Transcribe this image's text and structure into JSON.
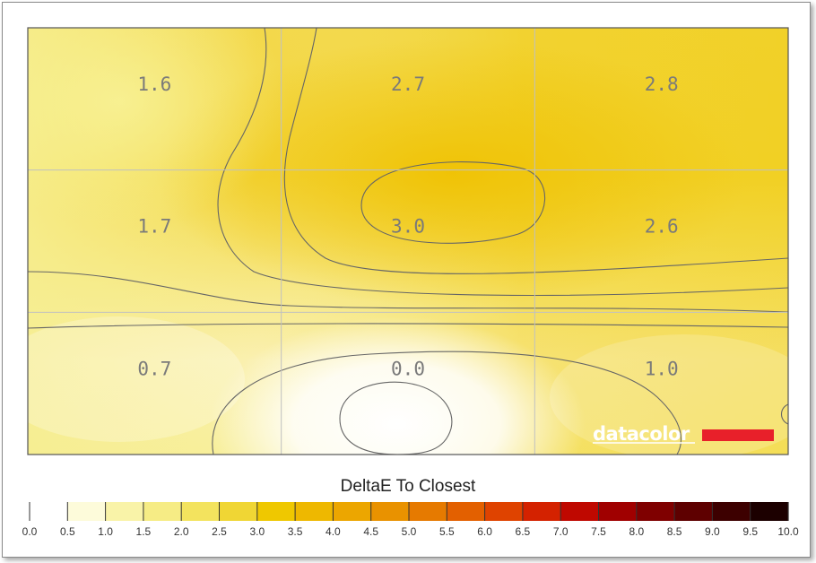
{
  "chart_data": {
    "type": "heatmap",
    "title": "DeltaE To Closest",
    "grid": {
      "rows": 3,
      "cols": 3,
      "shown": true
    },
    "values": [
      [
        1.6,
        2.7,
        2.8
      ],
      [
        1.7,
        3.0,
        2.6
      ],
      [
        0.7,
        0.0,
        1.0
      ]
    ],
    "value_labels": [
      [
        "1.6",
        "2.7",
        "2.8"
      ],
      [
        "1.7",
        "3.0",
        "2.6"
      ],
      [
        "0.7",
        "0.0",
        "1.0"
      ]
    ],
    "contours": true,
    "colorbar": {
      "min": 0.0,
      "max": 10.0,
      "step": 0.5,
      "tick_labels": [
        "0.0",
        "0.5",
        "1.0",
        "1.5",
        "2.0",
        "2.5",
        "3.0",
        "3.5",
        "4.0",
        "4.5",
        "5.0",
        "5.5",
        "6.0",
        "6.5",
        "7.0",
        "7.5",
        "8.0",
        "8.5",
        "9.0",
        "9.5",
        "10.0"
      ],
      "colors": [
        "#ffffff",
        "#fdfbda",
        "#f9f3a8",
        "#f6ec85",
        "#f3e35e",
        "#f0d634",
        "#efc800",
        "#eeb800",
        "#eca600",
        "#e99200",
        "#e67a00",
        "#e36000",
        "#df4300",
        "#d42200",
        "#bf0800",
        "#a00000",
        "#7f0000",
        "#5e0000",
        "#3d0000",
        "#1c0000"
      ]
    }
  },
  "watermark": {
    "text": "datacolor",
    "bar_color": "#e8202a"
  }
}
